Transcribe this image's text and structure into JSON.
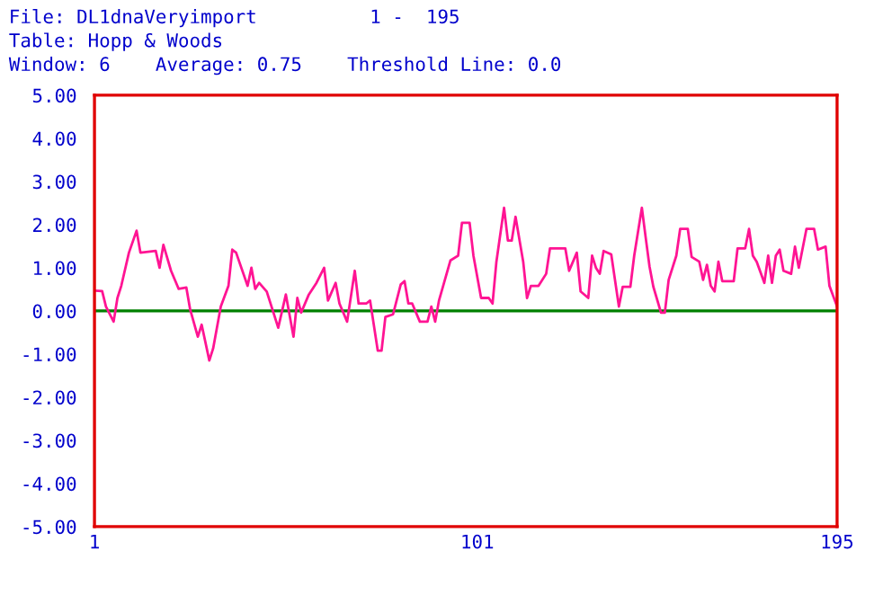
{
  "chart_data": {
    "type": "line",
    "title": "File: DL1dnaVeryimport          1 -  195",
    "subtitle": "Table: Hopp & Woods",
    "annotations": [
      "Window: 6    Average: 0.75    Threshold Line: 0.0"
    ],
    "x": [
      1,
      3,
      4,
      6,
      7,
      8,
      10,
      12,
      13,
      17,
      18,
      19,
      21,
      23,
      25,
      26,
      28,
      29,
      31,
      32,
      34,
      36,
      37,
      38,
      41,
      42,
      43,
      44,
      46,
      48,
      49,
      51,
      52,
      53,
      54,
      55,
      57,
      59,
      61,
      62,
      64,
      65,
      67,
      69,
      70,
      72,
      73,
      75,
      76,
      77,
      79,
      81,
      82,
      83,
      84,
      86,
      88,
      89,
      90,
      91,
      94,
      96,
      97,
      99,
      100,
      102,
      104,
      105,
      106,
      108,
      109,
      110,
      111,
      113,
      114,
      115,
      117,
      119,
      120,
      124,
      125,
      127,
      128,
      130,
      131,
      132,
      133,
      134,
      136,
      138,
      139,
      141,
      142,
      144,
      145,
      146,
      147,
      149,
      150,
      151,
      153,
      154,
      156,
      157,
      159,
      160,
      161,
      162,
      163,
      164,
      165,
      168,
      169,
      171,
      172,
      173,
      174,
      176,
      177,
      178,
      179,
      180,
      181,
      183,
      184,
      185,
      187,
      189,
      190,
      192,
      193,
      195
    ],
    "series": [
      {
        "color": "#ff1493",
        "values": [
          0.47,
          0.46,
          0.1,
          -0.25,
          0.3,
          0.58,
          1.35,
          1.86,
          1.35,
          1.39,
          1.0,
          1.53,
          0.93,
          0.51,
          0.54,
          0.03,
          -0.6,
          -0.32,
          -1.15,
          -0.87,
          0.1,
          0.58,
          1.42,
          1.35,
          0.58,
          1.0,
          0.51,
          0.65,
          0.45,
          -0.11,
          -0.39,
          0.38,
          -0.11,
          -0.6,
          0.3,
          -0.04,
          0.38,
          0.65,
          1.0,
          0.24,
          0.65,
          0.17,
          -0.25,
          0.93,
          0.17,
          0.17,
          0.24,
          -0.92,
          -0.92,
          -0.14,
          -0.08,
          0.61,
          0.69,
          0.17,
          0.17,
          -0.25,
          -0.25,
          0.1,
          -0.25,
          0.24,
          1.17,
          1.28,
          2.04,
          2.04,
          1.28,
          0.3,
          0.3,
          0.17,
          1.14,
          2.39,
          1.63,
          1.63,
          2.18,
          1.14,
          0.3,
          0.58,
          0.58,
          0.86,
          1.45,
          1.45,
          0.93,
          1.35,
          0.45,
          0.3,
          1.28,
          1.0,
          0.86,
          1.39,
          1.31,
          0.1,
          0.56,
          0.56,
          1.28,
          2.39,
          1.7,
          1.03,
          0.56,
          -0.04,
          -0.04,
          0.72,
          1.28,
          1.9,
          1.9,
          1.25,
          1.14,
          0.72,
          1.07,
          0.58,
          0.45,
          1.14,
          0.69,
          0.69,
          1.45,
          1.45,
          1.9,
          1.28,
          1.14,
          0.65,
          1.28,
          0.65,
          1.28,
          1.42,
          0.93,
          0.86,
          1.49,
          1.0,
          1.9,
          1.9,
          1.42,
          1.49,
          0.58,
          0.1
        ]
      }
    ],
    "xlim": [
      1,
      195
    ],
    "xticks": [
      1,
      101,
      195
    ],
    "ylim": [
      -5,
      5
    ],
    "yticks": [
      {
        "value": 5,
        "label": "5.00"
      },
      {
        "value": 4,
        "label": "4.00"
      },
      {
        "value": 3,
        "label": "3.00"
      },
      {
        "value": 2,
        "label": "2.00"
      },
      {
        "value": 1,
        "label": "1.00"
      },
      {
        "value": 0,
        "label": "0.00"
      },
      {
        "value": -1,
        "label": "-1.00"
      },
      {
        "value": -2,
        "label": "-2.00"
      },
      {
        "value": -3,
        "label": "-3.00"
      },
      {
        "value": -4,
        "label": "-4.00"
      },
      {
        "value": -5,
        "label": "-5.00"
      }
    ],
    "ref_lines": [
      {
        "axis": "y",
        "value": 0,
        "color": "#008000"
      }
    ],
    "grid": false,
    "legend": false,
    "marker": "none",
    "line_style": "solid"
  }
}
